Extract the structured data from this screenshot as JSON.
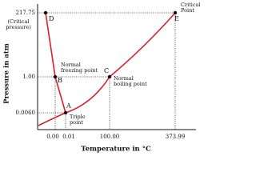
{
  "y_axis": {
    "title": "Pressure in atm",
    "ticks": [
      "217.75",
      "1.00",
      "0.0060"
    ],
    "note": [
      "(Critical",
      "pressure)"
    ]
  },
  "x_axis": {
    "title": "Temperature in °C",
    "ticks": [
      "0.00",
      "0.01",
      "100.00",
      "373.99"
    ]
  },
  "points": [
    {
      "letter": "D"
    },
    {
      "letter": "E",
      "label": [
        "Critical",
        "Point"
      ]
    },
    {
      "letter": "B",
      "label": [
        "Normal",
        "freezing point"
      ]
    },
    {
      "letter": "C",
      "label": [
        "Normal",
        "boiling point"
      ]
    },
    {
      "letter": "A",
      "label": [
        "Triple",
        "point"
      ]
    }
  ]
}
